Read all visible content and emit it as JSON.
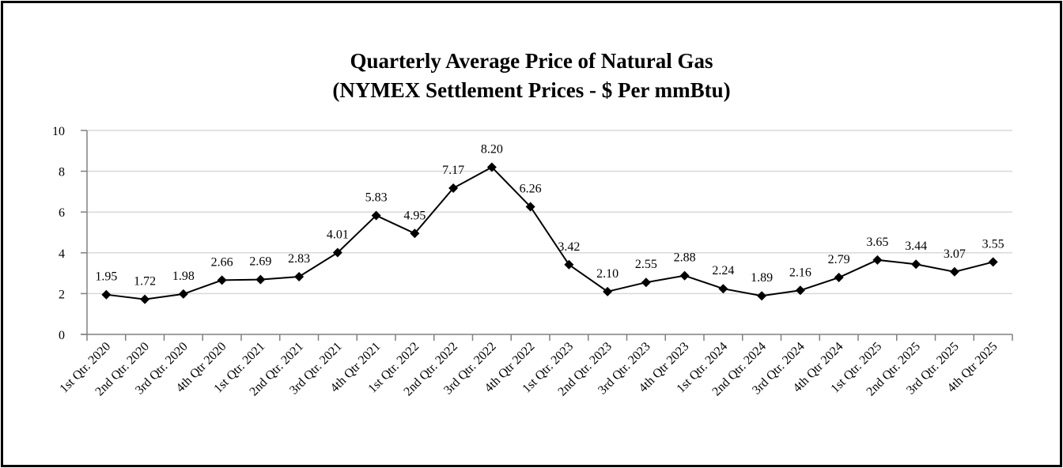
{
  "chart_data": {
    "type": "line",
    "title": "Quarterly Average Price of Natural Gas",
    "subtitle": "(NYMEX Settlement Prices - $ Per mmBtu)",
    "xlabel": "",
    "ylabel": "",
    "ylim": [
      0,
      10
    ],
    "yticks": [
      0,
      2,
      4,
      6,
      8,
      10
    ],
    "grid": true,
    "line_color": "#000000",
    "grid_color": "#d9d9d9",
    "categories": [
      "1st Qtr. 2020",
      "2nd Qtr. 2020",
      "3rd Qtr. 2020",
      "4th Qtr 2020",
      "1st Qtr. 2021",
      "2nd Qtr. 2021",
      "3rd Qtr. 2021",
      "4th Qtr 2021",
      "1st Qtr. 2022",
      "2nd Qtr. 2022",
      "3rd Qtr. 2022",
      "4th Qtr 2022",
      "1st Qtr. 2023",
      "2nd Qtr. 2023",
      "3rd Qtr. 2023",
      "4th Qtr 2023",
      "1st Qtr. 2024",
      "2nd Qtr. 2024",
      "3rd Qtr. 2024",
      "4th Qtr 2024",
      "1st Qtr. 2025",
      "2nd Qtr. 2025",
      "3rd Qtr. 2025",
      "4th Qtr 2025"
    ],
    "values": [
      1.95,
      1.72,
      1.98,
      2.66,
      2.69,
      2.83,
      4.01,
      5.83,
      4.95,
      7.17,
      8.2,
      6.26,
      3.42,
      2.1,
      2.55,
      2.88,
      2.24,
      1.89,
      2.16,
      2.79,
      3.65,
      3.44,
      3.07,
      3.55
    ],
    "labels": [
      "1.95",
      "1.72",
      "1.98",
      "2.66",
      "2.69",
      "2.83",
      "4.01",
      "5.83",
      "4.95",
      "7.17",
      "8.20",
      "6.26",
      "3.42",
      "2.10",
      "2.55",
      "2.88",
      "2.24",
      "1.89",
      "2.16",
      "2.79",
      "3.65",
      "3.44",
      "3.07",
      "3.55"
    ]
  }
}
